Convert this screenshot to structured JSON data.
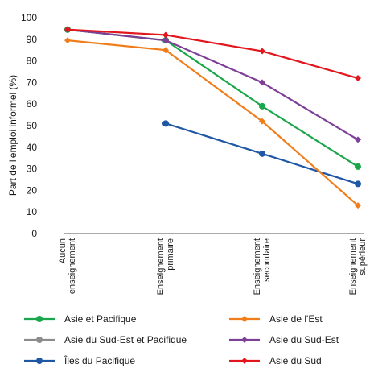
{
  "chart_data": {
    "type": "line",
    "title": "",
    "ylabel": "Part de l'emploi informel (%)",
    "xlabel": "",
    "ylim": [
      0,
      100
    ],
    "yticks": [
      0,
      10,
      20,
      30,
      40,
      50,
      60,
      70,
      80,
      90,
      100
    ],
    "grid": false,
    "legend_position": "bottom",
    "categories": [
      [
        "Aucun",
        "enseignement"
      ],
      [
        "Enseignement",
        "primaire"
      ],
      [
        "Enseignement",
        "secondaire"
      ],
      [
        "Enseignement",
        "supérieur"
      ]
    ],
    "series": [
      {
        "name": "Asie et Pacifique",
        "color": "#1aa64a",
        "marker": "circle",
        "values": [
          94.5,
          89.5,
          59,
          31
        ]
      },
      {
        "name": "Asie de l'Est",
        "color": "#f07d1a",
        "marker": "diamond",
        "values": [
          89.5,
          85,
          52,
          13
        ]
      },
      {
        "name": "Asie du Sud-Est et Pacifique",
        "color": "#8c8c8c",
        "marker": "circle",
        "values": [
          94.5,
          89.5,
          null,
          null
        ]
      },
      {
        "name": "Asie du Sud-Est",
        "color": "#7d3f98",
        "marker": "diamond",
        "values": [
          94.5,
          89.5,
          70,
          43.5
        ]
      },
      {
        "name": "Îles du Pacifique",
        "color": "#1f57a4",
        "marker": "circle",
        "values": [
          null,
          51,
          37,
          23
        ]
      },
      {
        "name": "Asie du Sud",
        "color": "#e3161e",
        "marker": "diamond",
        "values": [
          94.5,
          92,
          84.5,
          72
        ]
      }
    ]
  }
}
